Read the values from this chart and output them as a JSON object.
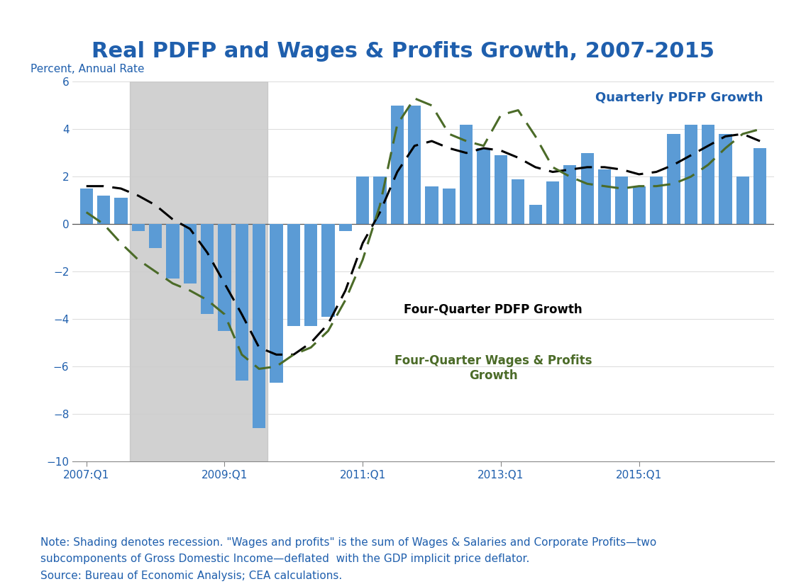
{
  "title": "Real PDFP and Wages & Profits Growth, 2007-2015",
  "ylabel": "Percent, Annual Rate",
  "title_color": "#1F5FAD",
  "title_fontsize": 22,
  "ylabel_fontsize": 11,
  "background_color": "#ffffff",
  "ylim": [
    -10,
    6
  ],
  "yticks": [
    -10,
    -8,
    -6,
    -4,
    -2,
    0,
    2,
    4,
    6
  ],
  "xtick_labels": [
    "2007:Q1",
    "2009:Q1",
    "2011:Q1",
    "2013:Q1",
    "2015:Q1"
  ],
  "bar_color": "#5B9BD5",
  "bar_values": [
    1.5,
    1.2,
    1.1,
    -0.3,
    -1.0,
    -2.3,
    -2.5,
    -3.8,
    -4.5,
    -6.6,
    -8.6,
    -6.7,
    -4.3,
    -4.3,
    -3.9,
    -0.3,
    2.0,
    2.0,
    5.0,
    5.0,
    1.6,
    1.5,
    4.2,
    3.2,
    2.9,
    1.9,
    0.8,
    1.8,
    2.5,
    3.0,
    2.3,
    2.0,
    1.6,
    2.0,
    3.8,
    4.2,
    4.2,
    3.8,
    2.0,
    3.2
  ],
  "four_qtr_pdfp": [
    1.6,
    1.6,
    1.5,
    1.2,
    0.8,
    0.2,
    -0.2,
    -1.2,
    -2.5,
    -3.8,
    -5.2,
    -5.5,
    -5.5,
    -5.0,
    -4.2,
    -2.8,
    -0.8,
    0.5,
    2.2,
    3.3,
    3.5,
    3.2,
    3.0,
    3.2,
    3.1,
    2.8,
    2.4,
    2.2,
    2.3,
    2.4,
    2.4,
    2.3,
    2.1,
    2.2,
    2.5,
    2.9,
    3.3,
    3.7,
    3.8,
    3.5
  ],
  "four_qtr_wages": [
    0.5,
    0.0,
    -0.8,
    -1.5,
    -2.0,
    -2.5,
    -2.8,
    -3.2,
    -3.8,
    -5.5,
    -6.1,
    -6.0,
    -5.5,
    -5.2,
    -4.5,
    -3.2,
    -1.5,
    0.8,
    4.2,
    5.3,
    5.0,
    3.8,
    3.5,
    3.3,
    4.6,
    4.8,
    3.7,
    2.4,
    2.0,
    1.7,
    1.6,
    1.5,
    1.6,
    1.6,
    1.7,
    2.0,
    2.5,
    3.2,
    3.8,
    4.0
  ],
  "recession_xstart": 2.5,
  "recession_xend": 10.5,
  "note_text": "Note: Shading denotes recession. \"Wages and profits\" is the sum of Wages & Salaries and Corporate Profits—two\nsubcomponents of Gross Domestic Income—deflated  with the GDP implicit price deflator.\nSource: Bureau of Economic Analysis; CEA calculations.",
  "note_fontsize": 11,
  "label_quarterly_pdfp": "Quarterly PDFP Growth",
  "label_four_qtr_pdfp": "Four-Quarter PDFP Growth",
  "label_four_qtr_wages": "Four-Quarter Wages & Profits\nGrowth",
  "quarterly_label_color": "#1F5FAD",
  "four_qtr_pdfp_color": "#000000",
  "four_qtr_wages_color": "#4B6B28",
  "xtick_bar_indices": [
    0,
    8,
    16,
    24,
    32
  ],
  "n_quarters": 40
}
